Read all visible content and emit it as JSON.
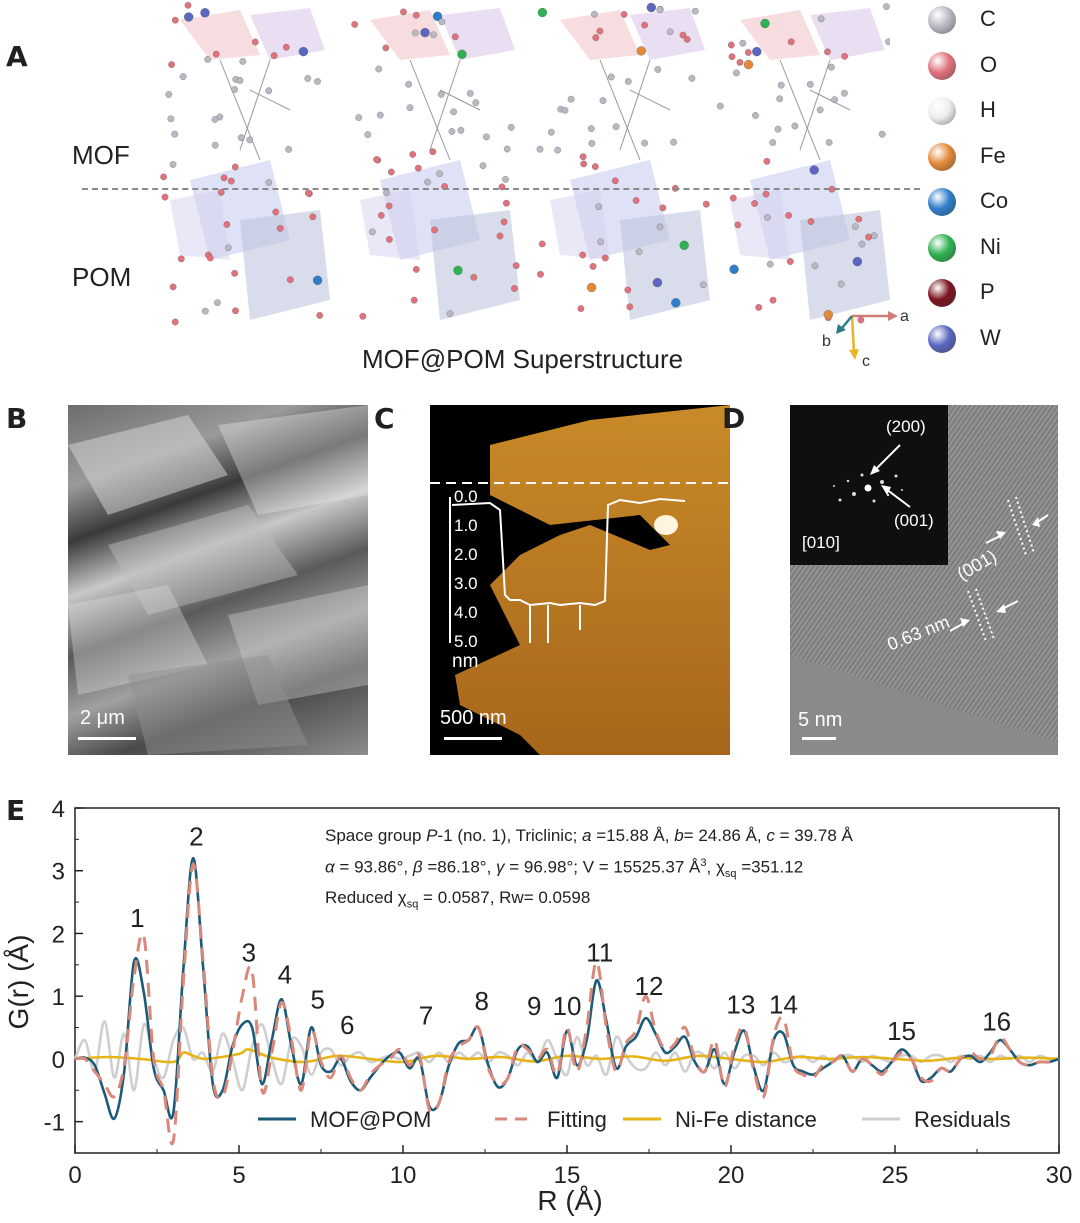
{
  "panels": {
    "A": {
      "label": "A",
      "mof_label": "MOF",
      "pom_label": "POM",
      "caption": "MOF@POM Superstructure",
      "axes": {
        "a": "a",
        "b": "b",
        "c": "c"
      },
      "legend": [
        {
          "symbol": "C",
          "color": "#b9b9c4"
        },
        {
          "symbol": "O",
          "color": "#e0727c"
        },
        {
          "symbol": "H",
          "color": "#eeeeee"
        },
        {
          "symbol": "Fe",
          "color": "#e28a3a"
        },
        {
          "symbol": "Co",
          "color": "#2f7ec9"
        },
        {
          "symbol": "Ni",
          "color": "#2fb152"
        },
        {
          "symbol": "P",
          "color": "#7a1420"
        },
        {
          "symbol": "W",
          "color": "#5b66c0"
        }
      ]
    },
    "B": {
      "label": "B",
      "scale": "2 μm"
    },
    "C": {
      "label": "C",
      "scale": "500 nm",
      "profile_ticks": [
        "0.0",
        "1.0",
        "2.0",
        "3.0",
        "4.0",
        "5.0"
      ],
      "profile_unit": "nm"
    },
    "D": {
      "label": "D",
      "scale": "5 nm",
      "fft_labels": {
        "p200": "(200)",
        "p001": "(001)",
        "zone": "[010]"
      },
      "fringe_label": "(001)",
      "spacing": "0.63 nm"
    },
    "E": {
      "label": "E"
    }
  },
  "chart_data": {
    "type": "line",
    "xlabel": "R (Å)",
    "ylabel": "G(r) (Å)",
    "xlim": [
      0,
      30
    ],
    "ylim": [
      -1.5,
      4
    ],
    "x_ticks": [
      0,
      5,
      10,
      15,
      20,
      25,
      30
    ],
    "y_ticks": [
      -1,
      0,
      1,
      2,
      3,
      4
    ],
    "legend_position": "bottom-right",
    "annotation": {
      "line1_prefix": "Space group ",
      "line1_sg": "P",
      "line1_sg_rest": "-1 (no. 1), Triclinic; ",
      "line1_a": "a",
      "line1_a_val": " =15.88 Å, ",
      "line1_b": "b",
      "line1_b_val": "= 24.86 Å, ",
      "line1_c": "c",
      "line1_c_val": " = 39.78 Å",
      "line2_alpha": "α",
      "line2_alpha_val": " = 93.86°, ",
      "line2_beta": "β",
      "line2_beta_val": " =86.18°, ",
      "line2_gamma": "γ",
      "line2_gamma_val": " = 96.98°; V = 15525.37 Å",
      "line2_cube": "3",
      "line2_chi": ", χ",
      "line2_sq": "sq",
      "line2_chi_val": " =351.12",
      "line3_prefix": "Reduced χ",
      "line3_sq": "sq",
      "line3_rest": " = 0.0587, Rw= 0.0598"
    },
    "peak_labels": [
      {
        "text": "1",
        "x": 1.9,
        "y": 2.1
      },
      {
        "text": "2",
        "x": 3.7,
        "y": 3.4
      },
      {
        "text": "3",
        "x": 5.3,
        "y": 1.55
      },
      {
        "text": "4",
        "x": 6.4,
        "y": 1.2
      },
      {
        "text": "5",
        "x": 7.4,
        "y": 0.8
      },
      {
        "text": "6",
        "x": 8.3,
        "y": 0.4
      },
      {
        "text": "7",
        "x": 10.7,
        "y": 0.55
      },
      {
        "text": "8",
        "x": 12.4,
        "y": 0.78
      },
      {
        "text": "9",
        "x": 14.0,
        "y": 0.7
      },
      {
        "text": "10",
        "x": 15.0,
        "y": 0.7
      },
      {
        "text": "11",
        "x": 16.0,
        "y": 1.55
      },
      {
        "text": "12",
        "x": 17.5,
        "y": 1.02
      },
      {
        "text": "13",
        "x": 20.3,
        "y": 0.72
      },
      {
        "text": "14",
        "x": 21.6,
        "y": 0.72
      },
      {
        "text": "15",
        "x": 25.2,
        "y": 0.3
      },
      {
        "text": "16",
        "x": 28.1,
        "y": 0.45
      }
    ],
    "series": [
      {
        "name": "MOF@POM",
        "color": "#1b5b78",
        "style": "solid",
        "x": [
          0.0,
          0.3,
          0.6,
          0.9,
          1.2,
          1.5,
          1.8,
          2.1,
          2.4,
          2.7,
          3.0,
          3.3,
          3.6,
          3.9,
          4.2,
          4.5,
          4.8,
          5.1,
          5.4,
          5.7,
          6.0,
          6.3,
          6.6,
          6.9,
          7.2,
          7.5,
          7.8,
          8.1,
          8.4,
          8.7,
          9.0,
          9.3,
          9.6,
          9.9,
          10.2,
          10.5,
          10.8,
          11.1,
          11.4,
          11.7,
          12.0,
          12.3,
          12.6,
          12.9,
          13.2,
          13.5,
          13.8,
          14.1,
          14.4,
          14.7,
          15.0,
          15.3,
          15.6,
          15.9,
          16.2,
          16.5,
          16.8,
          17.1,
          17.4,
          17.7,
          18.0,
          18.3,
          18.6,
          18.9,
          19.2,
          19.5,
          19.8,
          20.1,
          20.4,
          20.7,
          21.0,
          21.3,
          21.6,
          21.9,
          22.2,
          22.5,
          22.8,
          23.1,
          23.4,
          23.7,
          24.0,
          24.3,
          24.6,
          24.9,
          25.2,
          25.5,
          25.8,
          26.1,
          26.4,
          26.7,
          27.0,
          27.3,
          27.6,
          27.9,
          28.2,
          28.5,
          28.8,
          29.1,
          29.4,
          29.7,
          30.0
        ],
        "y": [
          0.0,
          0.02,
          -0.1,
          -0.55,
          -0.95,
          -0.2,
          1.55,
          1.05,
          -0.15,
          -0.5,
          -0.85,
          1.4,
          3.2,
          1.5,
          -0.4,
          -0.5,
          0.2,
          0.55,
          0.5,
          -0.4,
          0.3,
          0.95,
          0.2,
          -0.4,
          0.5,
          -0.1,
          -0.2,
          0.0,
          -0.35,
          -0.5,
          -0.3,
          -0.1,
          0.05,
          0.1,
          -0.15,
          0.0,
          -0.75,
          -0.7,
          -0.1,
          0.25,
          0.3,
          0.5,
          -0.1,
          -0.45,
          -0.3,
          0.15,
          0.2,
          -0.05,
          0.1,
          -0.3,
          0.45,
          -0.1,
          0.3,
          1.25,
          0.6,
          -0.15,
          0.2,
          0.35,
          0.65,
          0.4,
          0.1,
          0.2,
          0.35,
          -0.05,
          -0.2,
          0.15,
          -0.4,
          0.1,
          0.45,
          -0.15,
          -0.5,
          0.3,
          0.4,
          -0.1,
          -0.2,
          -0.25,
          -0.15,
          -0.05,
          0.05,
          -0.2,
          0.0,
          -0.1,
          -0.2,
          -0.05,
          0.15,
          0.0,
          -0.35,
          -0.3,
          -0.15,
          -0.2,
          0.0,
          0.05,
          -0.05,
          0.1,
          0.3,
          0.15,
          -0.05,
          -0.1,
          -0.05,
          -0.05,
          0.0
        ]
      },
      {
        "name": "Fitting",
        "color": "#d9887a",
        "style": "dashed",
        "x": [
          0.0,
          0.3,
          0.6,
          0.9,
          1.2,
          1.5,
          1.8,
          2.1,
          2.4,
          2.7,
          3.0,
          3.3,
          3.6,
          3.9,
          4.2,
          4.5,
          4.8,
          5.1,
          5.4,
          5.7,
          6.0,
          6.3,
          6.6,
          6.9,
          7.2,
          7.5,
          7.8,
          8.1,
          8.4,
          8.7,
          9.0,
          9.3,
          9.6,
          9.9,
          10.2,
          10.5,
          10.8,
          11.1,
          11.4,
          11.7,
          12.0,
          12.3,
          12.6,
          12.9,
          13.2,
          13.5,
          13.8,
          14.1,
          14.4,
          14.7,
          15.0,
          15.3,
          15.6,
          15.9,
          16.2,
          16.5,
          16.8,
          17.1,
          17.4,
          17.7,
          18.0,
          18.3,
          18.6,
          18.9,
          19.2,
          19.5,
          19.8,
          20.1,
          20.4,
          20.7,
          21.0,
          21.3,
          21.6,
          21.9,
          22.2,
          22.5,
          22.8,
          23.1,
          23.4,
          23.7,
          24.0,
          24.3,
          24.6,
          24.9,
          25.2,
          25.5,
          25.8,
          26.1,
          26.4,
          26.7,
          27.0,
          27.3,
          27.6,
          27.9,
          28.2,
          28.5,
          28.8,
          29.1,
          29.4,
          29.7,
          30.0
        ],
        "y": [
          0.0,
          0.0,
          -0.2,
          -0.4,
          -0.6,
          -0.1,
          1.3,
          1.95,
          0.0,
          -0.5,
          -1.3,
          1.2,
          3.1,
          1.6,
          -0.3,
          -0.6,
          0.1,
          1.0,
          1.4,
          -0.5,
          0.1,
          0.9,
          0.3,
          -0.5,
          0.45,
          -0.05,
          -0.3,
          0.05,
          -0.3,
          -0.5,
          -0.25,
          -0.1,
          0.0,
          0.15,
          -0.1,
          0.05,
          -0.8,
          -0.7,
          -0.05,
          0.2,
          0.3,
          0.5,
          -0.15,
          -0.4,
          -0.3,
          0.2,
          0.15,
          0.0,
          0.15,
          -0.25,
          0.5,
          -0.2,
          0.5,
          1.55,
          0.5,
          -0.2,
          0.25,
          0.45,
          1.0,
          0.45,
          0.15,
          0.25,
          0.5,
          0.0,
          -0.2,
          0.3,
          -0.45,
          0.2,
          0.5,
          -0.2,
          -0.6,
          0.35,
          0.65,
          -0.1,
          -0.25,
          -0.3,
          -0.1,
          -0.05,
          0.05,
          -0.2,
          0.0,
          -0.1,
          -0.25,
          -0.05,
          0.1,
          0.0,
          -0.3,
          -0.35,
          -0.15,
          -0.2,
          0.0,
          0.1,
          0.0,
          0.05,
          0.35,
          0.15,
          -0.05,
          -0.1,
          -0.05,
          -0.05,
          0.0
        ]
      },
      {
        "name": "Ni-Fe distance",
        "color": "#e6b417",
        "style": "solid",
        "x": [
          0,
          1,
          2,
          3,
          3.3,
          3.6,
          4,
          5,
          5.3,
          6,
          7,
          8,
          9,
          10,
          11,
          12,
          13,
          14,
          15,
          16,
          17,
          18,
          19,
          20,
          21,
          22,
          23,
          24,
          25,
          26,
          27,
          28,
          29,
          30
        ],
        "y": [
          0.0,
          0.03,
          0.0,
          -0.05,
          0.1,
          0.05,
          0.0,
          0.08,
          0.15,
          0.02,
          -0.05,
          0.05,
          0.0,
          -0.05,
          0.05,
          0.0,
          0.03,
          -0.04,
          0.05,
          0.0,
          0.04,
          -0.03,
          0.05,
          0.0,
          -0.05,
          0.03,
          0.0,
          0.03,
          0.0,
          -0.03,
          0.02,
          0.0,
          0.02,
          0.0
        ]
      },
      {
        "name": "Residuals",
        "color": "#cfcfcf",
        "style": "solid",
        "x": [
          0.0,
          0.3,
          0.6,
          0.9,
          1.2,
          1.5,
          1.8,
          2.1,
          2.4,
          2.7,
          3.0,
          3.3,
          3.6,
          3.9,
          4.2,
          4.5,
          4.8,
          5.1,
          5.4,
          5.7,
          6.0,
          6.3,
          6.6,
          6.9,
          7.2,
          7.5,
          7.8,
          8.1,
          8.4,
          8.7,
          9.0,
          9.3,
          9.6,
          9.9,
          10.2,
          10.5,
          10.8,
          11.1,
          11.4,
          11.7,
          12.0,
          12.3,
          12.6,
          12.9,
          13.2,
          13.5,
          13.8,
          14.1,
          14.4,
          14.7,
          15.0,
          15.3,
          15.6,
          15.9,
          16.2,
          16.5,
          16.8,
          17.1,
          17.4,
          17.7,
          18.0,
          18.3,
          18.6,
          18.9,
          19.2,
          19.5,
          19.8,
          20.1,
          20.4,
          20.7,
          21.0,
          21.3,
          21.6,
          21.9,
          22.2,
          22.5,
          22.8,
          23.1,
          23.4,
          23.7,
          24.0,
          24.3,
          24.6,
          24.9,
          25.2,
          25.5,
          25.8,
          26.1,
          26.4,
          26.7,
          27.0,
          27.3,
          27.6,
          27.9,
          28.2,
          28.5,
          28.8,
          29.1,
          29.4,
          29.7,
          30.0
        ],
        "y": [
          0.0,
          0.3,
          -0.2,
          0.6,
          -0.3,
          0.4,
          -0.5,
          0.55,
          0.0,
          -0.3,
          0.3,
          0.5,
          0.0,
          0.1,
          -0.2,
          0.4,
          0.0,
          -0.5,
          0.2,
          0.55,
          0.0,
          -0.4,
          0.3,
          0.2,
          -0.25,
          0.1,
          0.15,
          -0.1,
          0.05,
          0.1,
          -0.05,
          0.0,
          0.05,
          0.0,
          0.05,
          0.1,
          -0.05,
          0.1,
          -0.05,
          0.1,
          0.0,
          0.1,
          -0.05,
          0.1,
          0.05,
          -0.1,
          0.1,
          -0.05,
          0.3,
          0.0,
          -0.25,
          0.35,
          -0.1,
          0.05,
          -0.25,
          0.35,
          0.05,
          -0.15,
          -0.15,
          0.1,
          -0.1,
          0.1,
          -0.2,
          0.1,
          0.05,
          -0.15,
          0.1,
          -0.15,
          0.05,
          0.05,
          -0.1,
          0.1,
          -0.05,
          0.0,
          0.05,
          -0.05,
          0.05,
          -0.05,
          0.05,
          0.05,
          -0.05,
          0.05,
          0.0,
          -0.05,
          0.05,
          0.05,
          -0.05,
          0.05,
          0.05,
          -0.05,
          0.05,
          0.0,
          0.05,
          -0.05,
          0.05,
          0.0,
          0.05,
          -0.05,
          0.05,
          0.0,
          0.0
        ]
      }
    ]
  }
}
